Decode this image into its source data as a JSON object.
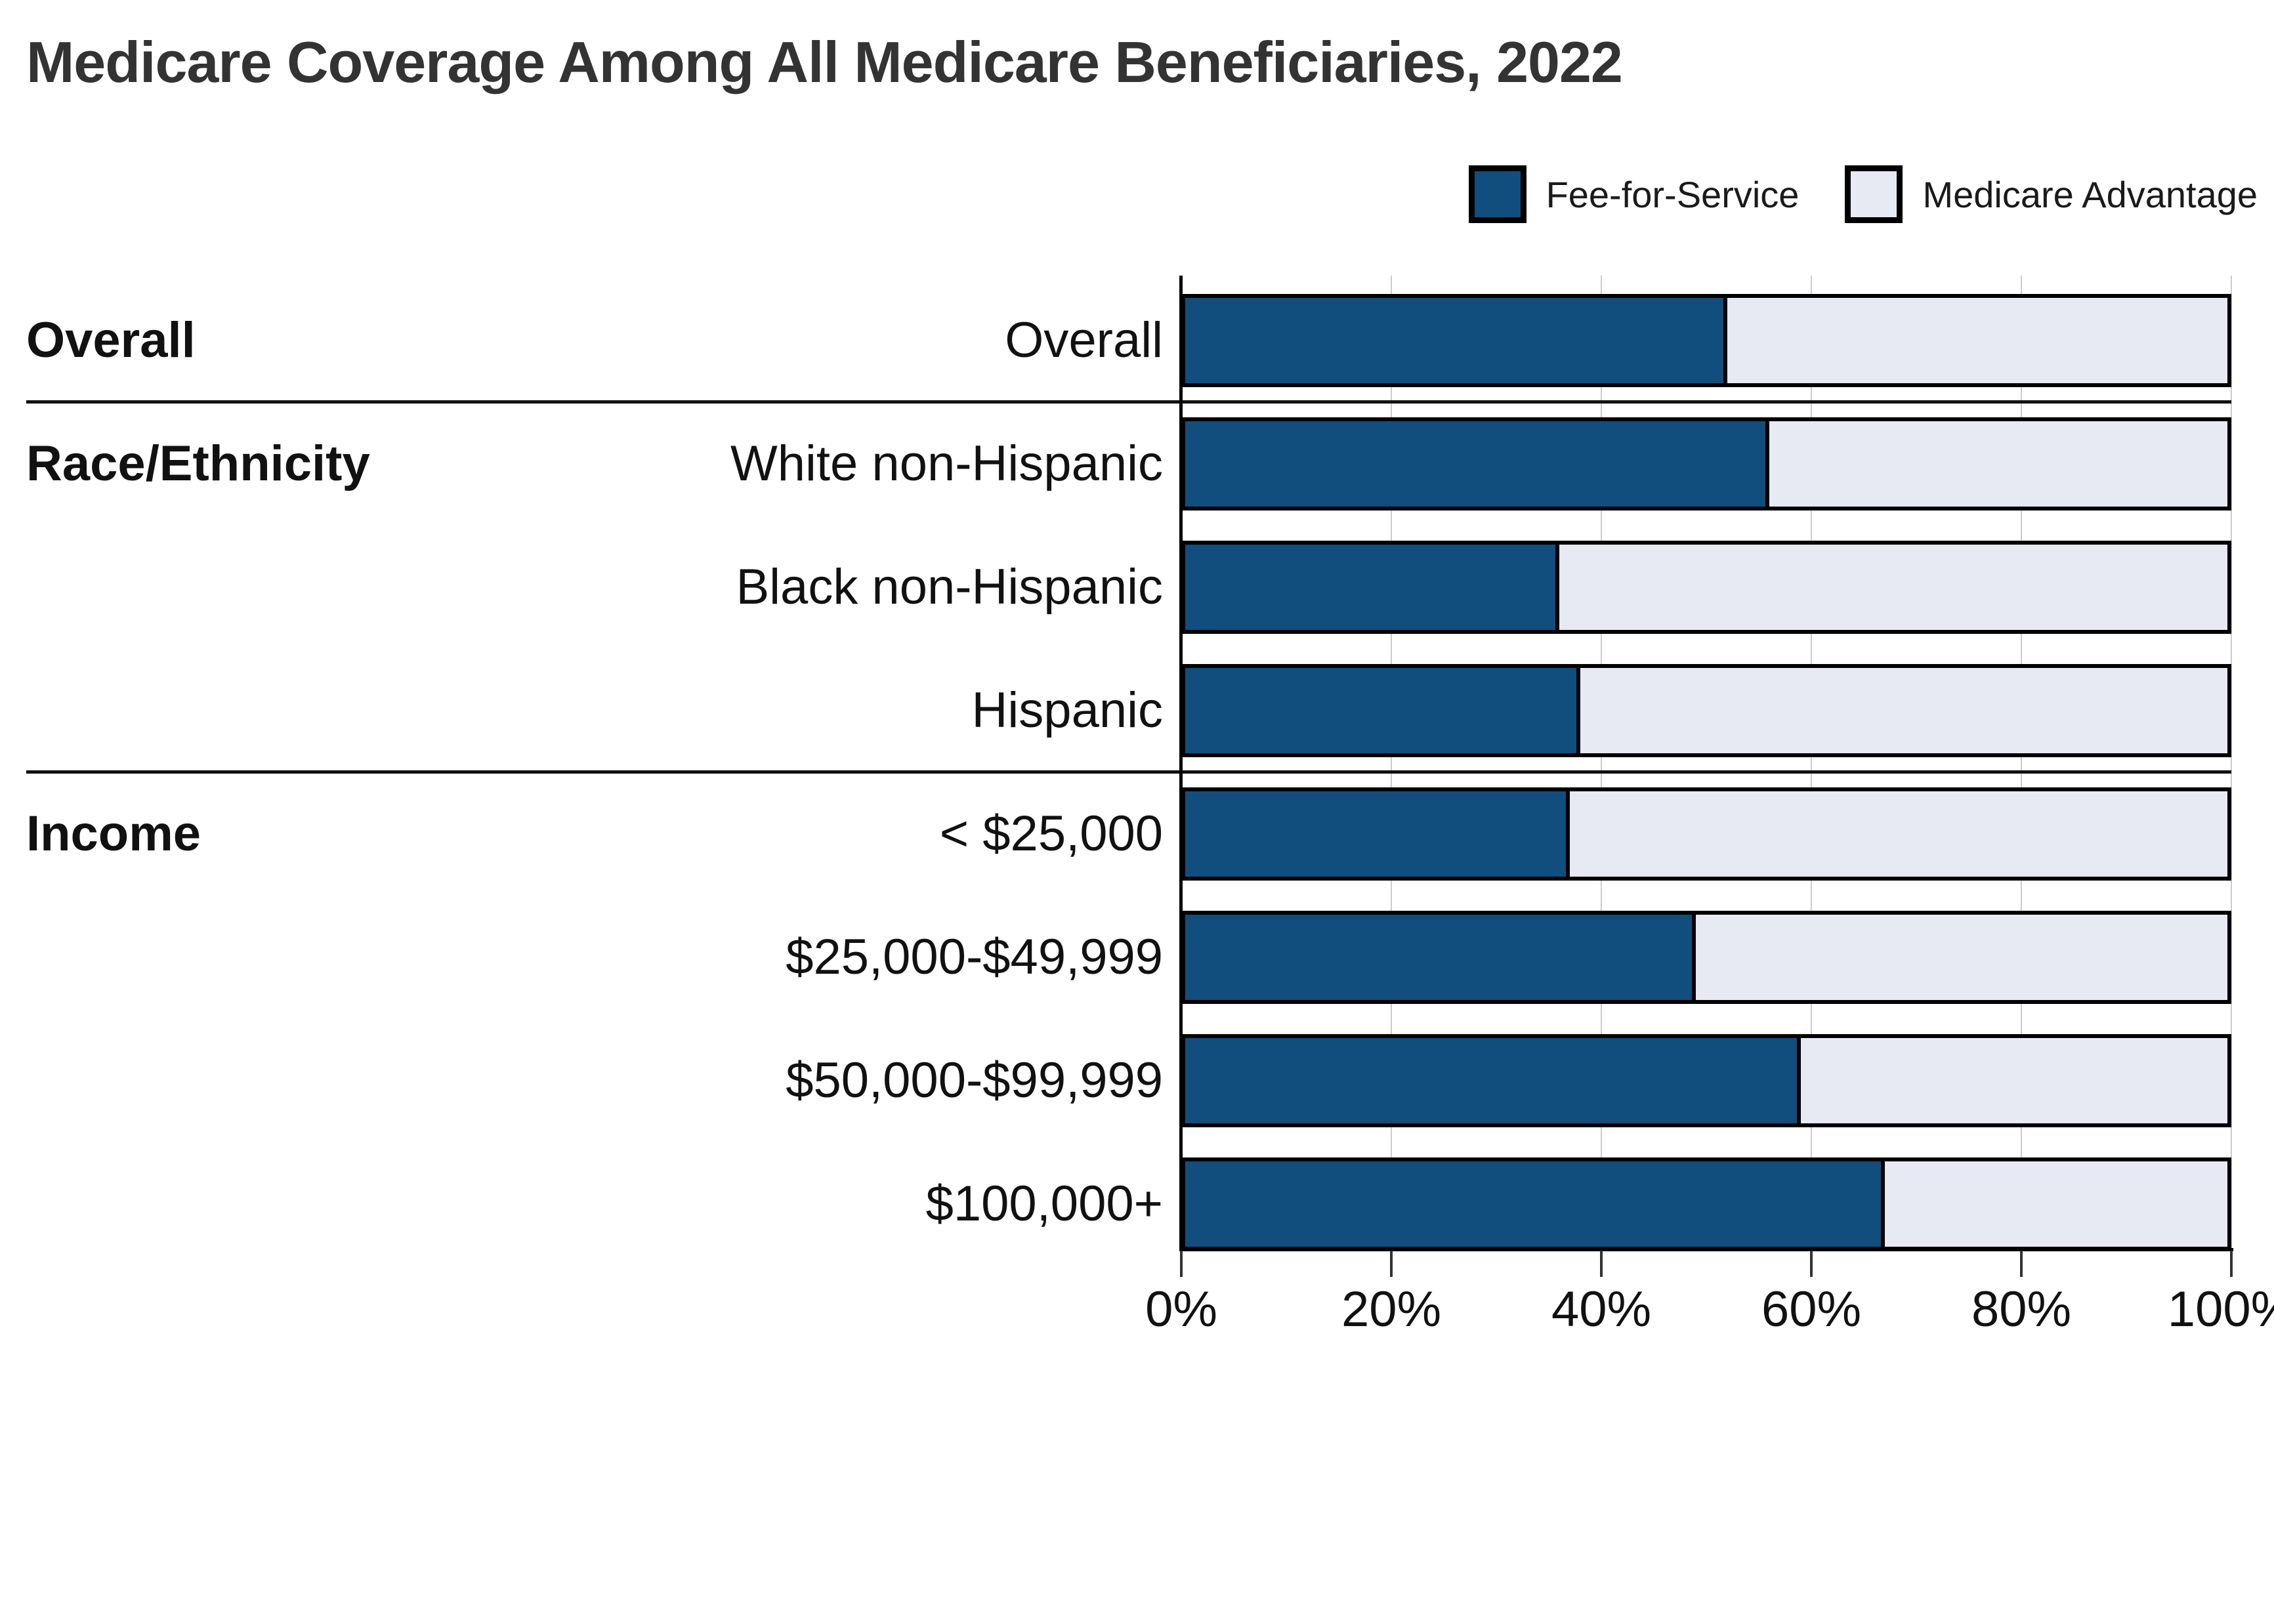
{
  "title": "Medicare Coverage Among All Medicare Beneficiaries, 2022",
  "legend": [
    {
      "label": "Fee-for-Service",
      "color": "#114e7d"
    },
    {
      "label": "Medicare Advantage",
      "color": "#e7eaf2"
    }
  ],
  "colors": {
    "fee_for_service": "#114e7d",
    "medicare_advantage": "#e7eaf2",
    "bar_border": "#000000",
    "gridline": "#cccccc",
    "text": "#111111",
    "title_text": "#333333",
    "background": "#ffffff"
  },
  "chart_data": {
    "type": "bar",
    "orientation": "horizontal",
    "stacked": true,
    "title": "Medicare Coverage Among All Medicare Beneficiaries, 2022",
    "categories": [
      "Overall",
      "White non-Hispanic",
      "Black non-Hispanic",
      "Hispanic",
      "< $25,000",
      "$25,000-$49,999",
      "$50,000-$99,999",
      "$100,000+"
    ],
    "series": [
      {
        "name": "Fee-for-Service",
        "color": "#114e7d",
        "values": [
          52,
          56,
          36,
          38,
          37,
          49,
          59,
          67
        ]
      },
      {
        "name": "Medicare Advantage",
        "color": "#e7eaf2",
        "values": [
          48,
          44,
          64,
          62,
          63,
          51,
          41,
          33
        ]
      }
    ],
    "groups": [
      {
        "label": "Overall",
        "start_row": 0
      },
      {
        "label": "Race/Ethnicity",
        "start_row": 1
      },
      {
        "label": "Income",
        "start_row": 4
      }
    ],
    "group_separators_after_rows": [
      0,
      3
    ],
    "x_ticks": [
      "0%",
      "20%",
      "40%",
      "60%",
      "80%",
      "100%"
    ],
    "x_tick_values": [
      0,
      20,
      40,
      60,
      80,
      100
    ],
    "xlim": [
      0,
      100
    ],
    "xlabel": "",
    "ylabel": "",
    "grid": true,
    "legend_position": "top-right"
  }
}
